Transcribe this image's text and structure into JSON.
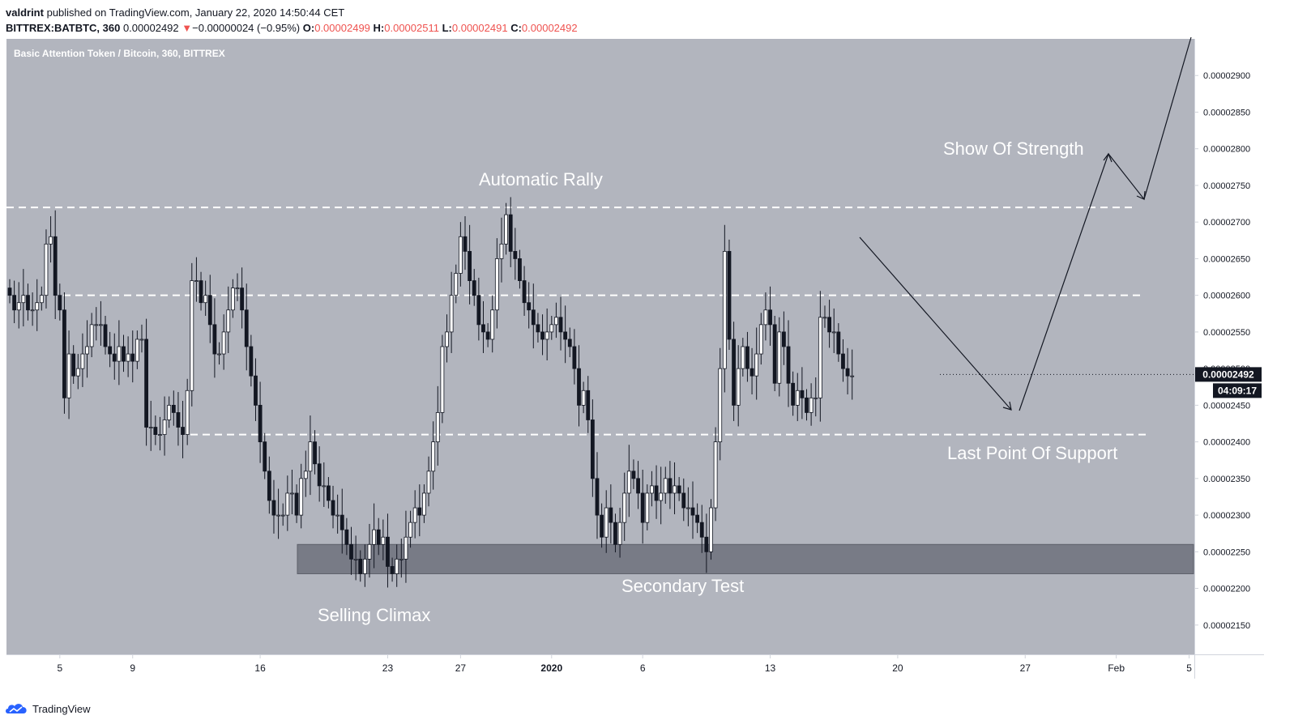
{
  "header": {
    "author": "valdrint",
    "published_text": "published on TradingView.com, January 22, 2020 14:50:44 CET",
    "symbol": "BITTREX:BATBTC, 360",
    "last": "0.00002492",
    "change_arrow": "▼",
    "change": "−0.00000024 (−0.95%)",
    "o_label": "O:",
    "o_value": "0.00002499",
    "h_label": "H:",
    "h_value": "0.00002511",
    "l_label": "L:",
    "l_value": "0.00002491",
    "c_label": "C:",
    "c_value": "0.00002492"
  },
  "footer": {
    "brand": "TradingView",
    "logo_icon": "tradingview-cloud-icon"
  },
  "colors": {
    "plot_bg": "#b2b5be",
    "up": "#ffffff",
    "down": "#131722",
    "support_band": "#787b86",
    "negative": "#ef5350",
    "price_tag": "#131722",
    "annotation": "#ffffff"
  },
  "chart_data": {
    "type": "candlestick",
    "title": "Basic Attention Token / Bitcoin, 360, BITTREX",
    "ylim": [
      2.11e-05,
      2.95e-05
    ],
    "y_ticks": [
      "0.00002150",
      "0.00002200",
      "0.00002250",
      "0.00002300",
      "0.00002350",
      "0.00002400",
      "0.00002450",
      "0.00002500",
      "0.00002550",
      "0.00002600",
      "0.00002650",
      "0.00002700",
      "0.00002750",
      "0.00002800",
      "0.00002850",
      "0.00002900"
    ],
    "x_ticks": [
      {
        "label": "5",
        "bar": 11
      },
      {
        "label": "9",
        "bar": 27
      },
      {
        "label": "16",
        "bar": 55
      },
      {
        "label": "23",
        "bar": 83
      },
      {
        "label": "27",
        "bar": 99
      },
      {
        "label": "2020",
        "bar": 119
      },
      {
        "label": "6",
        "bar": 139
      },
      {
        "label": "13",
        "bar": 167
      },
      {
        "label": "20",
        "bar": 195
      },
      {
        "label": "27",
        "bar": 223
      },
      {
        "label": "Feb",
        "bar": 243
      },
      {
        "label": "5",
        "bar": 259
      }
    ],
    "last_price": "0.00002492",
    "countdown": "04:09:17",
    "series_close": [
      2.6,
      2.58,
      2.59,
      2.6,
      2.58,
      2.58,
      2.59,
      2.6,
      2.67,
      2.68,
      2.6,
      2.58,
      2.46,
      2.52,
      2.49,
      2.5,
      2.52,
      2.53,
      2.56,
      2.56,
      2.56,
      2.53,
      2.52,
      2.51,
      2.53,
      2.51,
      2.52,
      2.51,
      2.54,
      2.54,
      2.42,
      2.42,
      2.41,
      2.41,
      2.43,
      2.45,
      2.44,
      2.42,
      2.41,
      2.47,
      2.62,
      2.62,
      2.59,
      2.6,
      2.56,
      2.52,
      2.52,
      2.55,
      2.58,
      2.61,
      2.61,
      2.58,
      2.53,
      2.49,
      2.45,
      2.4,
      2.36,
      2.32,
      2.3,
      2.3,
      2.3,
      2.33,
      2.33,
      2.3,
      2.35,
      2.36,
      2.4,
      2.37,
      2.34,
      2.34,
      2.32,
      2.3,
      2.3,
      2.28,
      2.26,
      2.24,
      2.24,
      2.22,
      2.24,
      2.26,
      2.28,
      2.26,
      2.27,
      2.23,
      2.22,
      2.24,
      2.24,
      2.27,
      2.29,
      2.31,
      2.3,
      2.33,
      2.36,
      2.4,
      2.44,
      2.53,
      2.55,
      2.6,
      2.63,
      2.68,
      2.66,
      2.62,
      2.6,
      2.56,
      2.55,
      2.54,
      2.58,
      2.65,
      2.67,
      2.71,
      2.66,
      2.65,
      2.62,
      2.59,
      2.58,
      2.56,
      2.55,
      2.54,
      2.55,
      2.56,
      2.57,
      2.55,
      2.54,
      2.53,
      2.5,
      2.45,
      2.47,
      2.43,
      2.35,
      2.3,
      2.27,
      2.31,
      2.29,
      2.26,
      2.29,
      2.33,
      2.36,
      2.35,
      2.33,
      2.29,
      2.33,
      2.34,
      2.32,
      2.33,
      2.35,
      2.33,
      2.34,
      2.33,
      2.31,
      2.31,
      2.3,
      2.29,
      2.27,
      2.25,
      2.31,
      2.4,
      2.5,
      2.66,
      2.54,
      2.45,
      2.5,
      2.53,
      2.5,
      2.49,
      2.52,
      2.56,
      2.58,
      2.56,
      2.48,
      2.55,
      2.53,
      2.48,
      2.45,
      2.47,
      2.46,
      2.44,
      2.46,
      2.46,
      2.57,
      2.57,
      2.55,
      2.55,
      2.52,
      2.5,
      2.49,
      2.49
    ]
  },
  "annotations": {
    "automatic_rally": "Automatic Rally",
    "show_of_strength": "Show Of Strength",
    "last_point_of_support": "Last Point Of Support",
    "secondary_test": "Secondary Test",
    "selling_climax": "Selling Climax"
  },
  "levels": [
    2.72e-05,
    2.6e-05,
    2.41e-05
  ],
  "support_zone": [
    2.22e-05,
    2.26e-05
  ]
}
